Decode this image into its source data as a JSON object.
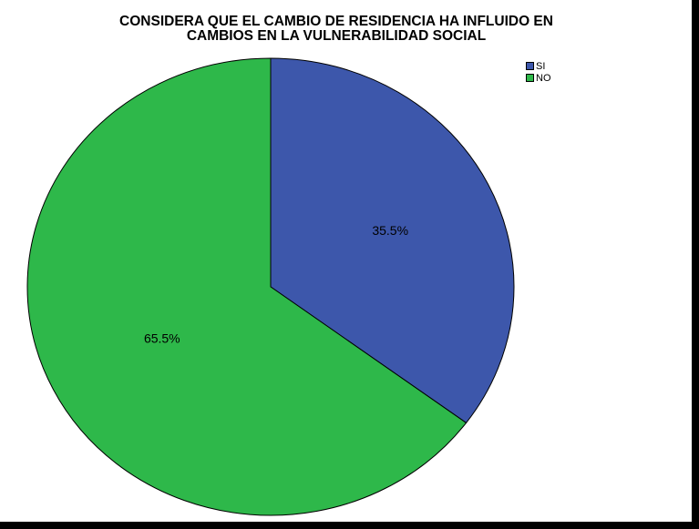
{
  "chart_data": {
    "type": "pie",
    "title": "CONSIDERA QUE EL CAMBIO DE RESIDENCIA HA INFLUIDO EN CAMBIOS EN LA VULNERABILIDAD SOCIAL",
    "title_lines": [
      "CONSIDERA QUE EL CAMBIO DE RESIDENCIA HA INFLUIDO EN",
      "CAMBIOS EN LA VULNERABILIDAD SOCIAL"
    ],
    "slices": [
      {
        "label": "SI",
        "value": 35.5,
        "data_label": "35.5%",
        "color": "#3d57ab"
      },
      {
        "label": "NO",
        "value": 65.5,
        "data_label": "65.5%",
        "color": "#2eb84a"
      }
    ],
    "legend_position": "top-right",
    "start_angle": "12 o'clock",
    "direction": "clockwise"
  }
}
